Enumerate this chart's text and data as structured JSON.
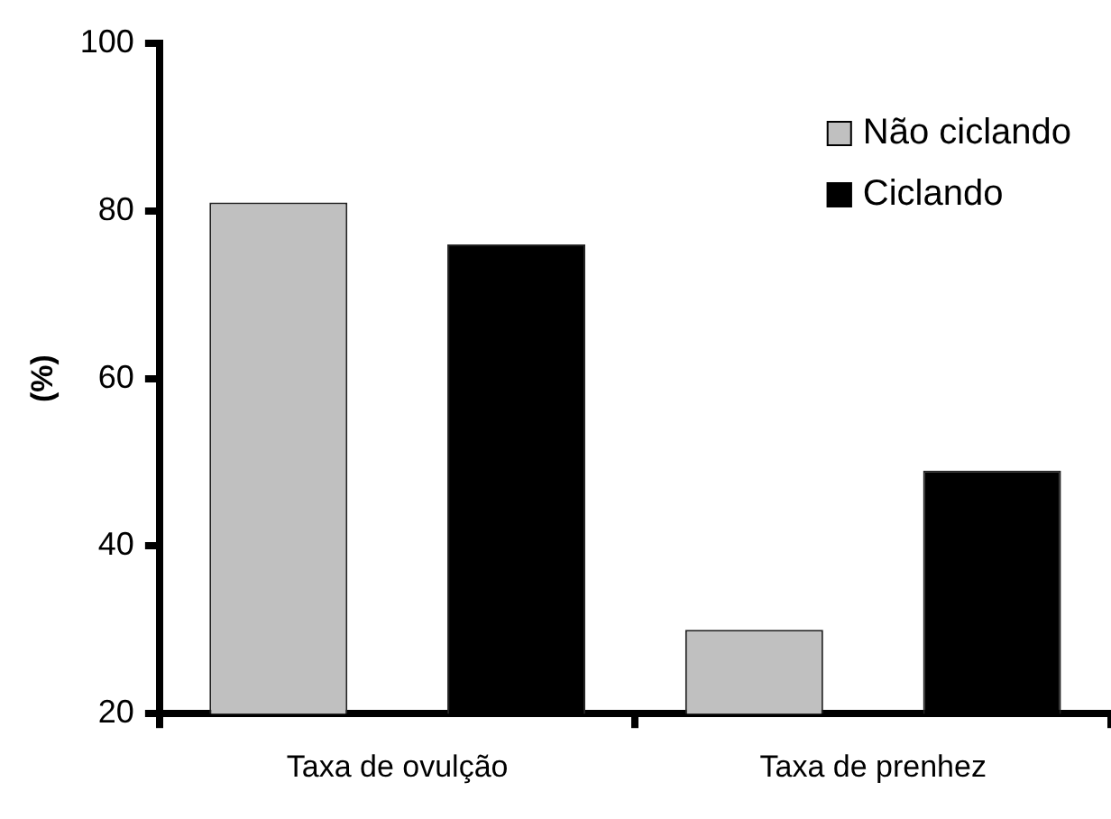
{
  "chart_data": {
    "type": "bar",
    "ylabel": "(%)",
    "categories": [
      "Taxa de ovulção",
      "Taxa de prenhez"
    ],
    "series": [
      {
        "name": "Não ciclando",
        "color": "#c0c0c0",
        "values": [
          81,
          30
        ]
      },
      {
        "name": "Ciclando",
        "color": "#000000",
        "values": [
          76,
          49
        ]
      }
    ],
    "ylim": [
      20,
      100
    ],
    "yticks": [
      20,
      40,
      60,
      80,
      100
    ],
    "grid": false,
    "legend": "top right"
  }
}
